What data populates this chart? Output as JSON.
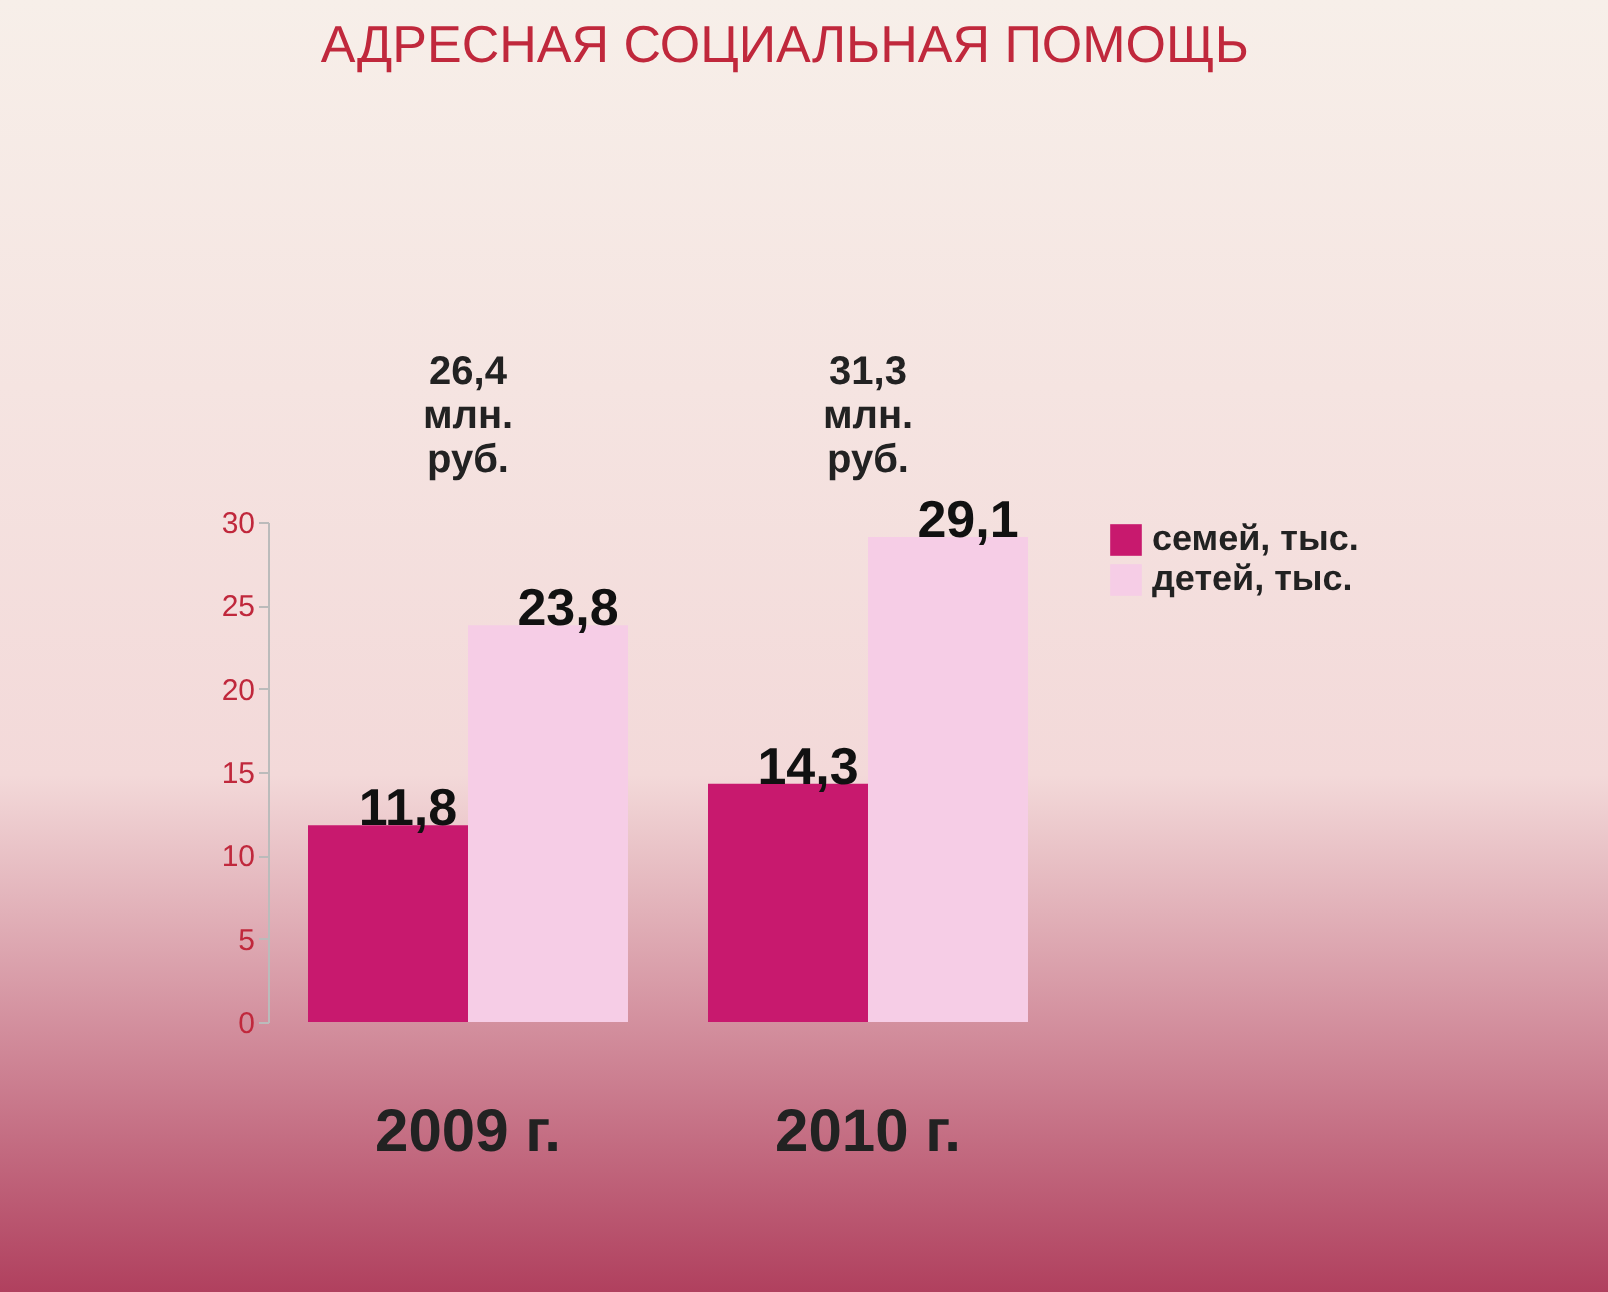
{
  "chart_data": {
    "type": "bar",
    "title": "АДРЕСНАЯ СОЦИАЛЬНАЯ ПОМОЩЬ",
    "categories": [
      "2009 г.",
      "2010 г."
    ],
    "series": [
      {
        "name": "семей, тыс.",
        "color": "#c8196e",
        "values": [
          11.8,
          14.3
        ],
        "value_labels": [
          "11,8",
          "14,3"
        ]
      },
      {
        "name": "детей, тыс.",
        "color": "#f6cde6",
        "values": [
          23.8,
          29.1
        ],
        "value_labels": [
          "23,8",
          "29,1"
        ]
      }
    ],
    "annotations": [
      "26,4 млн. руб.",
      "31,3 млн. руб."
    ],
    "ylim": [
      0,
      30
    ],
    "yticks": [
      0,
      5,
      10,
      15,
      20,
      25,
      30
    ],
    "grid": false,
    "legend": "right"
  }
}
